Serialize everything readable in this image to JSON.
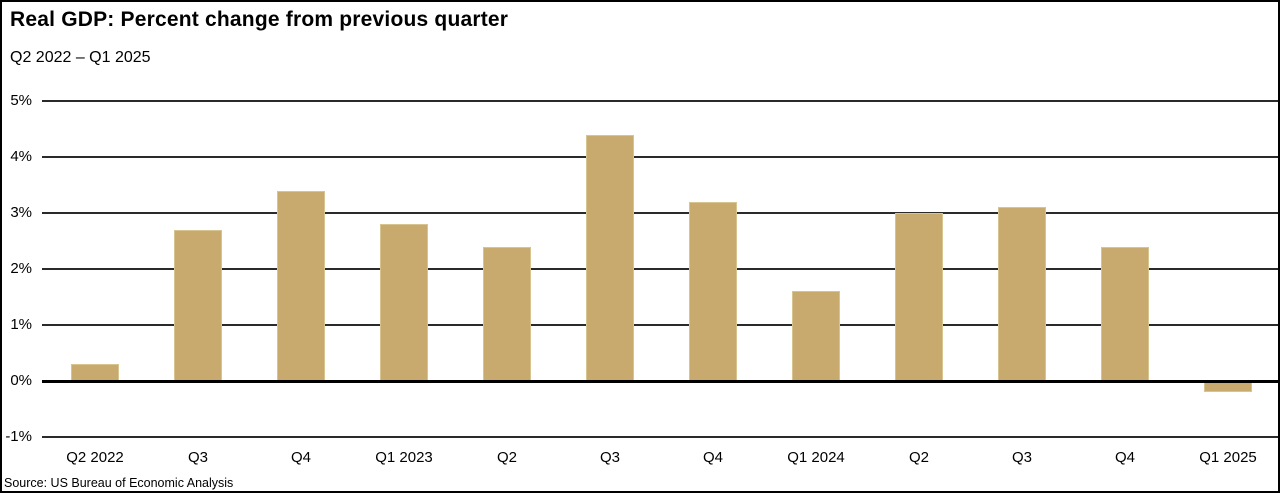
{
  "header": {
    "title": "Real GDP: Percent change from previous quarter",
    "subtitle": "Q2 2022 – Q1 2025"
  },
  "footer": {
    "source": "Source: US Bureau of Economic Analysis"
  },
  "colors": {
    "bar": "#c8a96e",
    "bar_edge": "#d8c48f",
    "gridline": "#2a2a2a",
    "zero_line": "#000000",
    "text": "#000000",
    "background": "#ffffff"
  },
  "chart_data": {
    "type": "bar",
    "title": "Real GDP: Percent change from previous quarter",
    "subtitle": "Q2 2022 – Q1 2025",
    "categories": [
      "Q2 2022",
      "Q3",
      "Q4",
      "Q1 2023",
      "Q2",
      "Q3",
      "Q4",
      "Q1 2024",
      "Q2",
      "Q3",
      "Q4",
      "Q1 2025"
    ],
    "values": [
      0.3,
      2.7,
      3.4,
      2.8,
      2.4,
      4.4,
      3.2,
      1.6,
      3.0,
      3.1,
      2.4,
      -0.2
    ],
    "xlabel": "",
    "ylabel": "",
    "ylim": [
      -1,
      5
    ],
    "yticks": [
      5,
      4,
      3,
      2,
      1,
      0,
      -1
    ],
    "ytick_labels": [
      "5%",
      "4%",
      "3%",
      "2%",
      "1%",
      "0%",
      "-1%"
    ],
    "grid": true,
    "legend": false,
    "bar_color": "#c8a96e",
    "source": "Source: US Bureau of Economic Analysis"
  }
}
